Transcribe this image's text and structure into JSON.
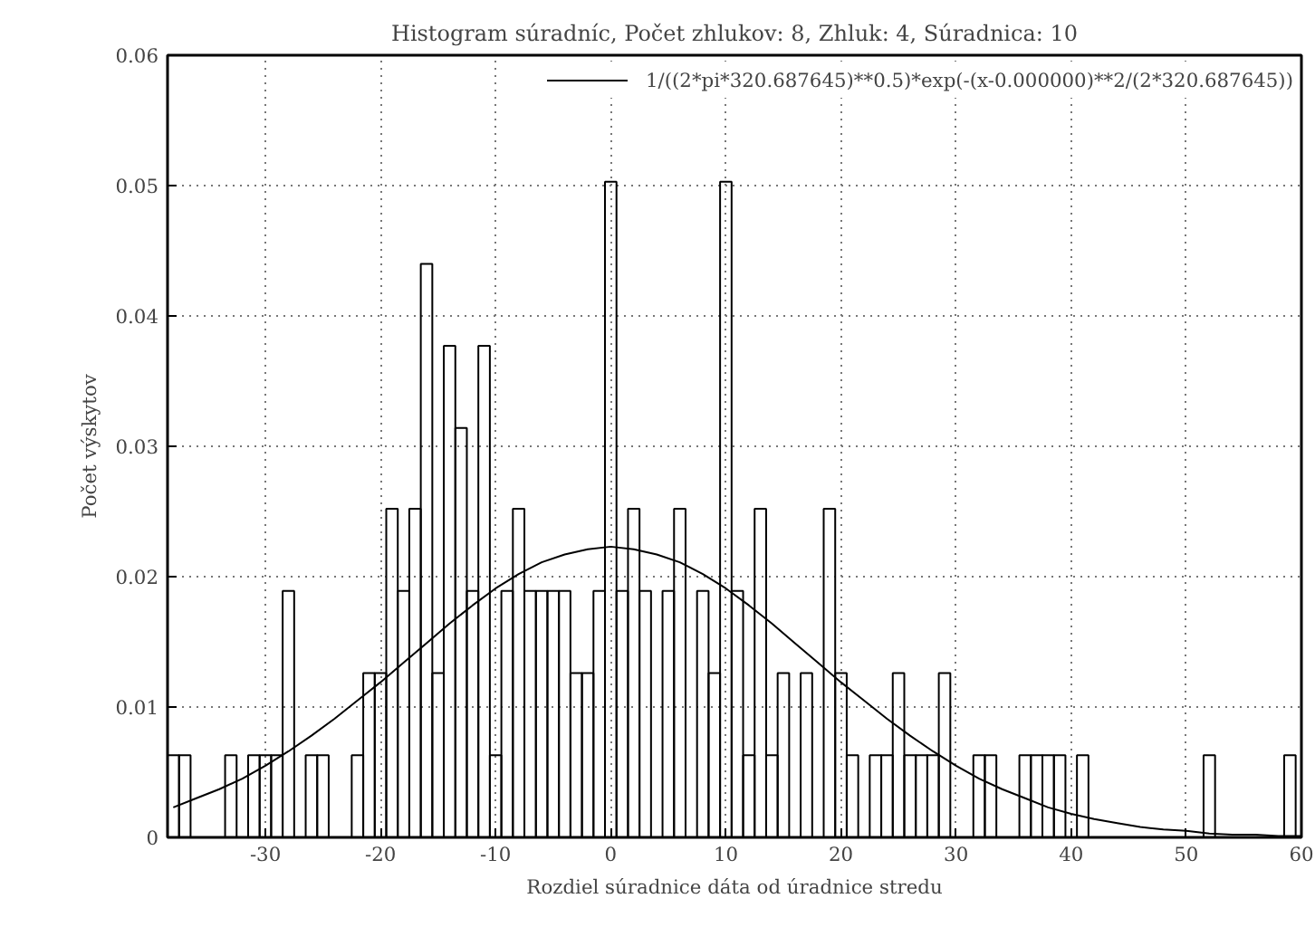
{
  "chart_data": {
    "type": "histogram",
    "title": "Histogram súradníc, Počet zhlukov: 8, Zhluk: 4, Súradnica: 10",
    "xlabel": "Rozdiel súradnice dáta od úradnice stredu",
    "ylabel": "Počet výskytov",
    "bins": [
      -38.5,
      -37.5,
      -36.5,
      -35.5,
      -34.5,
      -33.5,
      -32.5,
      -31.5,
      -30.5,
      -29.5,
      -28.5,
      -27.5,
      -26.5,
      -25.5,
      -24.5,
      -23.5,
      -22.5,
      -21.5,
      -20.5,
      -19.5,
      -18.5,
      -17.5,
      -16.5,
      -15.5,
      -14.5,
      -13.5,
      -12.5,
      -11.5,
      -10.5,
      -9.5,
      -8.5,
      -7.5,
      -6.5,
      -5.5,
      -4.5,
      -3.5,
      -2.5,
      -1.5,
      -0.5,
      0.5,
      1.5,
      2.5,
      3.5,
      4.5,
      5.5,
      6.5,
      7.5,
      8.5,
      9.5,
      10.5,
      11.5,
      12.5,
      13.5,
      14.5,
      15.5,
      16.5,
      17.5,
      18.5,
      19.5,
      20.5,
      21.5,
      22.5,
      23.5,
      24.5,
      25.5,
      26.5,
      27.5,
      28.5,
      29.5,
      30.5,
      31.5,
      32.5,
      33.5,
      34.5,
      35.5,
      36.5,
      37.5,
      38.5,
      39.5,
      40.5,
      41.5,
      42.5,
      43.5,
      44.5,
      45.5,
      46.5,
      47.5,
      48.5,
      49.5,
      50.5,
      51.5,
      52.5,
      53.5,
      54.5,
      55.5,
      56.5,
      57.5,
      58.5,
      59.5
    ],
    "series": [
      {
        "color": "#000000",
        "values": [
          0.0063,
          0.0063,
          0,
          0,
          0,
          0.0063,
          0,
          0.0063,
          0.0063,
          0.0063,
          0.0189,
          0,
          0.0063,
          0.0063,
          0,
          0,
          0.0063,
          0.0126,
          0.0126,
          0.0252,
          0.0189,
          0.0252,
          0.044,
          0.0126,
          0.0377,
          0.0314,
          0.0189,
          0.0377,
          0.0063,
          0.0189,
          0.0252,
          0.0189,
          0.0189,
          0.0189,
          0.0189,
          0.0126,
          0.0126,
          0.0189,
          0.0503,
          0.0189,
          0.0252,
          0.0189,
          0,
          0.0189,
          0.0252,
          0,
          0.0189,
          0.0126,
          0.0503,
          0.0189,
          0.0063,
          0.0252,
          0.0063,
          0.0126,
          0,
          0.0126,
          0,
          0.0252,
          0.0126,
          0.0063,
          0,
          0.0063,
          0.0063,
          0.0126,
          0.0063,
          0.0063,
          0.0063,
          0.0126,
          0,
          0,
          0.0063,
          0.0063,
          0,
          0,
          0.0063,
          0.0063,
          0.0063,
          0.0063,
          0,
          0.0063,
          0,
          0,
          0,
          0,
          0,
          0,
          0,
          0,
          0,
          0,
          0.0063,
          0,
          0,
          0,
          0,
          0,
          0,
          0.0063
        ]
      },
      {
        "type": "line",
        "name": "1/((2*pi*320.687645)**0.5)*exp(-(x-0.000000)**2/(2*320.687645))",
        "color": "#000000",
        "x": [
          -38,
          -36,
          -34,
          -32,
          -30,
          -28,
          -26,
          -24,
          -22,
          -20,
          -18,
          -16,
          -14,
          -12,
          -10,
          -8,
          -6,
          -4,
          -2,
          0,
          2,
          4,
          6,
          8,
          10,
          12,
          14,
          16,
          18,
          20,
          22,
          24,
          26,
          28,
          30,
          32,
          34,
          36,
          38,
          40,
          42,
          44,
          46,
          48,
          50,
          52,
          54,
          56,
          58,
          60
        ],
        "values": [
          0.0023,
          0.003,
          0.0037,
          0.0045,
          0.0055,
          0.0066,
          0.0078,
          0.0091,
          0.0105,
          0.0119,
          0.0134,
          0.0149,
          0.0164,
          0.0178,
          0.0191,
          0.0202,
          0.0211,
          0.0217,
          0.0221,
          0.0223,
          0.0221,
          0.0217,
          0.0211,
          0.0202,
          0.0191,
          0.0178,
          0.0164,
          0.0149,
          0.0134,
          0.0119,
          0.0105,
          0.0091,
          0.0078,
          0.0066,
          0.0055,
          0.0045,
          0.0037,
          0.003,
          0.0023,
          0.0018,
          0.0014,
          0.0011,
          0.0008,
          0.0006,
          0.0005,
          0.0003,
          0.0002,
          0.0002,
          0.0001,
          0.0001
        ]
      }
    ],
    "xlim": [
      -38.5,
      60
    ],
    "ylim": [
      0,
      0.06
    ],
    "xticks": [
      -30,
      -20,
      -10,
      0,
      10,
      20,
      30,
      40,
      50,
      60
    ],
    "yticks": [
      0,
      0.01,
      0.02,
      0.03,
      0.04,
      0.05,
      0.06
    ],
    "grid": true,
    "legend": "top right",
    "line_style": "solid"
  }
}
